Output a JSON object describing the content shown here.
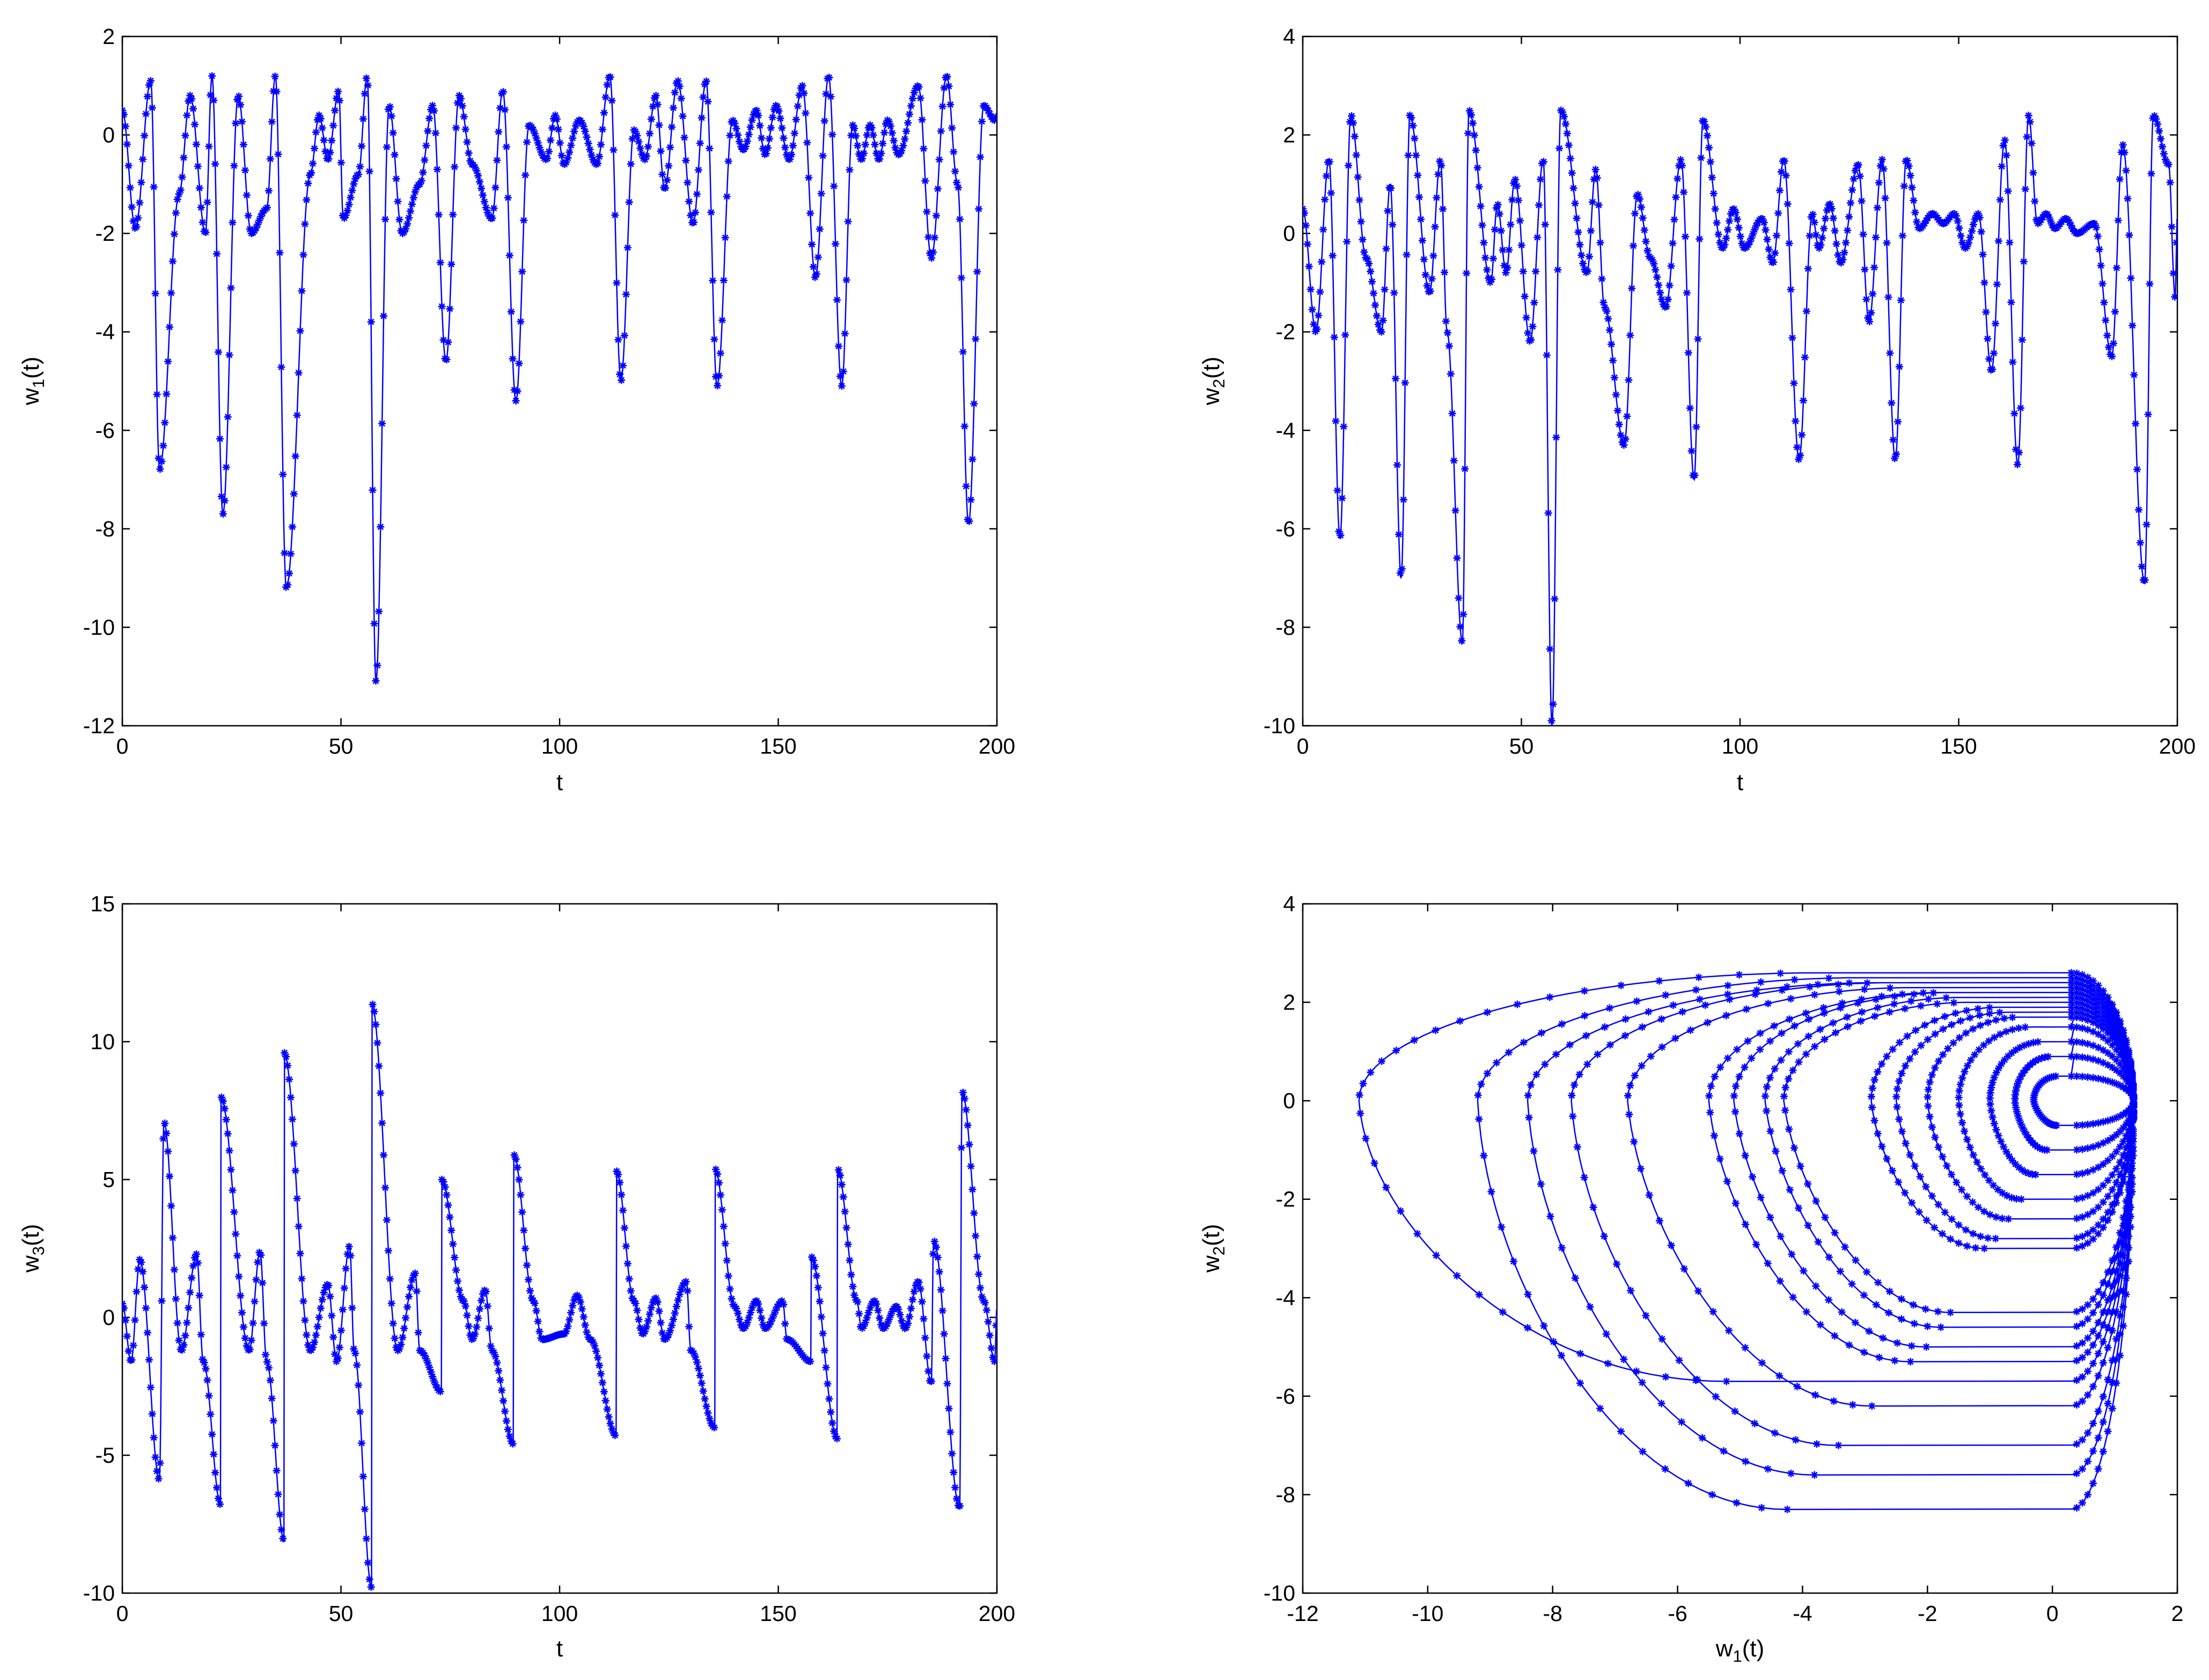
{
  "chart_data": [
    {
      "id": "w1",
      "type": "line",
      "marker": "asterisk",
      "xlabel": "t",
      "ylabel": {
        "main": "w",
        "sub": "1",
        "suffix": "(t)"
      },
      "xlim": [
        0,
        200
      ],
      "ylim": [
        -12,
        2
      ],
      "xticks": [
        0,
        50,
        100,
        150,
        200
      ],
      "yticks": [
        -12,
        -10,
        -8,
        -6,
        -4,
        -2,
        0,
        2
      ],
      "dips": [
        [
          3,
          -1.9
        ],
        [
          8.5,
          -6.8
        ],
        [
          13,
          -1.2
        ],
        [
          19,
          -2.0
        ],
        [
          23,
          -7.7
        ],
        [
          29.5,
          -2.0
        ],
        [
          33,
          -1.5
        ],
        [
          37.5,
          -9.2
        ],
        [
          43,
          -0.8
        ],
        [
          47,
          -0.5
        ],
        [
          50.5,
          -1.7
        ],
        [
          54,
          -0.8
        ],
        [
          58,
          -11.1
        ],
        [
          64,
          -2.0
        ],
        [
          68,
          -1.0
        ],
        [
          74,
          -4.6
        ],
        [
          80,
          -0.6
        ],
        [
          84.5,
          -1.7
        ],
        [
          90,
          -5.4
        ],
        [
          97,
          -0.5
        ],
        [
          101,
          -0.6
        ],
        [
          108.5,
          -0.6
        ],
        [
          114,
          -5.0
        ],
        [
          119.5,
          -0.5
        ],
        [
          124,
          -1.1
        ],
        [
          130.5,
          -1.8
        ],
        [
          136,
          -5.1
        ],
        [
          142,
          -0.3
        ],
        [
          147,
          -0.4
        ],
        [
          152.5,
          -0.5
        ],
        [
          158.5,
          -2.9
        ],
        [
          164.5,
          -5.1
        ],
        [
          169,
          -0.5
        ],
        [
          173,
          -0.5
        ],
        [
          177.5,
          -0.4
        ],
        [
          185,
          -2.5
        ],
        [
          191,
          -1.0
        ],
        [
          193.5,
          -7.9
        ],
        [
          199.5,
          0.3
        ]
      ],
      "peaks": [
        [
          6.5,
          1.1
        ],
        [
          15.5,
          0.8
        ],
        [
          20.5,
          1.2
        ],
        [
          26.5,
          0.8
        ],
        [
          35,
          1.2
        ],
        [
          45,
          0.4
        ],
        [
          49.5,
          0.9
        ],
        [
          56,
          1.2
        ],
        [
          61,
          0.6
        ],
        [
          71,
          0.6
        ],
        [
          77,
          0.8
        ],
        [
          87,
          0.9
        ],
        [
          93,
          0.2
        ],
        [
          99,
          0.4
        ],
        [
          104.5,
          0.3
        ],
        [
          111.5,
          1.2
        ],
        [
          117,
          0.1
        ],
        [
          122,
          0.8
        ],
        [
          127,
          1.1
        ],
        [
          133.5,
          1.1
        ],
        [
          139.5,
          0.3
        ],
        [
          145,
          0.5
        ],
        [
          149.5,
          0.6
        ],
        [
          155.5,
          1.0
        ],
        [
          161.5,
          1.2
        ],
        [
          167,
          0.2
        ],
        [
          171,
          0.2
        ],
        [
          175,
          0.3
        ],
        [
          182,
          1.0
        ],
        [
          188.5,
          1.2
        ],
        [
          197,
          0.6
        ]
      ]
    },
    {
      "id": "w2",
      "type": "line",
      "marker": "asterisk",
      "xlabel": "t",
      "ylabel": {
        "main": "w",
        "sub": "2",
        "suffix": "(t)"
      },
      "xlim": [
        0,
        200
      ],
      "ylim": [
        -10,
        4
      ],
      "xticks": [
        0,
        50,
        100,
        150,
        200
      ],
      "yticks": [
        -10,
        -8,
        -6,
        -4,
        -2,
        0,
        2,
        4
      ],
      "dips": [
        [
          3,
          -2.0
        ],
        [
          8.5,
          -6.2
        ],
        [
          14.5,
          -0.5
        ],
        [
          18,
          -2.0
        ],
        [
          22.5,
          -7.0
        ],
        [
          29,
          -1.2
        ],
        [
          33,
          -2.0
        ],
        [
          36.5,
          -8.3
        ],
        [
          43,
          -1.0
        ],
        [
          46.5,
          -0.8
        ],
        [
          52,
          -2.2
        ],
        [
          57,
          -10.0
        ],
        [
          65,
          -0.8
        ],
        [
          69,
          -1.5
        ],
        [
          73.5,
          -4.3
        ],
        [
          79.5,
          -0.5
        ],
        [
          83,
          -1.5
        ],
        [
          89.5,
          -5.0
        ],
        [
          96,
          -0.3
        ],
        [
          101,
          -0.3
        ],
        [
          107.5,
          -0.6
        ],
        [
          113.5,
          -4.6
        ],
        [
          118,
          -0.3
        ],
        [
          123,
          -0.6
        ],
        [
          129.5,
          -1.8
        ],
        [
          135.5,
          -4.6
        ],
        [
          141,
          0.1
        ],
        [
          146.5,
          0.2
        ],
        [
          151.5,
          -0.3
        ],
        [
          157.5,
          -2.8
        ],
        [
          163.5,
          -4.7
        ],
        [
          168,
          0.2
        ],
        [
          172,
          0.1
        ],
        [
          177,
          0.0
        ],
        [
          185,
          -2.5
        ],
        [
          192.5,
          -7.1
        ],
        [
          199.5,
          -1.3
        ]
      ],
      "peaks": [
        [
          6,
          1.5
        ],
        [
          11,
          2.4
        ],
        [
          20,
          1.0
        ],
        [
          24.5,
          2.4
        ],
        [
          31.5,
          1.5
        ],
        [
          38,
          2.5
        ],
        [
          44.5,
          0.6
        ],
        [
          48.5,
          1.1
        ],
        [
          55,
          1.5
        ],
        [
          59,
          2.5
        ],
        [
          67,
          1.3
        ],
        [
          76.5,
          0.8
        ],
        [
          86.5,
          1.5
        ],
        [
          91.5,
          2.3
        ],
        [
          98.5,
          0.5
        ],
        [
          105,
          0.3
        ],
        [
          110,
          1.5
        ],
        [
          116.5,
          0.4
        ],
        [
          120.5,
          0.6
        ],
        [
          127,
          1.4
        ],
        [
          132.5,
          1.5
        ],
        [
          138,
          1.5
        ],
        [
          144,
          0.4
        ],
        [
          149,
          0.4
        ],
        [
          154.5,
          0.4
        ],
        [
          160.5,
          1.9
        ],
        [
          166,
          2.4
        ],
        [
          170,
          0.4
        ],
        [
          174.5,
          0.3
        ],
        [
          181,
          0.2
        ],
        [
          187.5,
          1.8
        ],
        [
          194.5,
          2.4
        ],
        [
          198,
          1.4
        ]
      ]
    },
    {
      "id": "w3",
      "type": "line",
      "marker": "asterisk",
      "xlabel": "t",
      "ylabel": {
        "main": "w",
        "sub": "3",
        "suffix": "(t)"
      },
      "xlim": [
        0,
        200
      ],
      "ylim": [
        -10,
        15
      ],
      "xticks": [
        0,
        50,
        100,
        150,
        200
      ],
      "yticks": [
        -10,
        -5,
        0,
        5,
        10,
        15
      ],
      "dips": [
        [
          2,
          -1.6
        ],
        [
          8.5,
          -5.9
        ],
        [
          13.5,
          -1.2
        ],
        [
          18.5,
          -1.6
        ],
        [
          22.5,
          -6.8
        ],
        [
          29,
          -1.2
        ],
        [
          33,
          -1.6
        ],
        [
          37,
          -8.1
        ],
        [
          43,
          -1.2
        ],
        [
          49,
          -1.6
        ],
        [
          53,
          -1.2
        ],
        [
          57,
          -9.8
        ],
        [
          63,
          -1.2
        ],
        [
          68,
          -1.2
        ],
        [
          73,
          -2.7
        ],
        [
          80,
          -0.8
        ],
        [
          84.5,
          -1.2
        ],
        [
          89.5,
          -4.6
        ],
        [
          96,
          -0.8
        ],
        [
          101,
          -0.6
        ],
        [
          107,
          -0.8
        ],
        [
          113,
          -4.3
        ],
        [
          119,
          -0.6
        ],
        [
          124,
          -0.8
        ],
        [
          130,
          -1.2
        ],
        [
          135.5,
          -4.0
        ],
        [
          142,
          -0.4
        ],
        [
          147,
          -0.4
        ],
        [
          152,
          -0.8
        ],
        [
          157.5,
          -1.6
        ],
        [
          163.5,
          -4.4
        ],
        [
          169,
          -0.4
        ],
        [
          174,
          -0.4
        ],
        [
          179,
          -0.4
        ],
        [
          185,
          -2.4
        ],
        [
          191.5,
          -6.9
        ],
        [
          199.5,
          -1.6
        ]
      ],
      "peaks": [
        [
          4,
          2.1
        ],
        [
          9.5,
          7.1
        ],
        [
          17,
          2.3
        ],
        [
          22.5,
          8.0
        ],
        [
          31.5,
          2.4
        ],
        [
          37,
          9.6
        ],
        [
          47,
          1.2
        ],
        [
          52,
          2.6
        ],
        [
          57,
          11.4
        ],
        [
          67,
          1.6
        ],
        [
          73,
          5.0
        ],
        [
          78,
          0.6
        ],
        [
          83,
          1.0
        ],
        [
          89.5,
          5.9
        ],
        [
          94,
          0.6
        ],
        [
          104,
          0.8
        ],
        [
          113,
          5.3
        ],
        [
          117,
          0.6
        ],
        [
          122,
          0.7
        ],
        [
          129,
          1.3
        ],
        [
          135.5,
          5.4
        ],
        [
          140,
          0.4
        ],
        [
          145,
          0.6
        ],
        [
          151,
          0.6
        ],
        [
          157.5,
          2.2
        ],
        [
          163.5,
          5.4
        ],
        [
          168,
          0.6
        ],
        [
          172,
          0.6
        ],
        [
          177,
          0.4
        ],
        [
          182,
          1.3
        ],
        [
          185.5,
          2.8
        ],
        [
          192,
          8.2
        ],
        [
          197,
          0.6
        ]
      ]
    },
    {
      "id": "phase",
      "type": "line",
      "marker": "asterisk",
      "xlabel": {
        "main": "w",
        "sub": "1",
        "suffix": "(t)"
      },
      "ylabel": {
        "main": "w",
        "sub": "2",
        "suffix": "(t)"
      },
      "xlim": [
        -12,
        2
      ],
      "ylim": [
        -10,
        4
      ],
      "xticks": [
        -12,
        -10,
        -8,
        -6,
        -4,
        -2,
        0,
        2
      ],
      "yticks": [
        -10,
        -8,
        -6,
        -4,
        -2,
        0,
        2,
        4
      ],
      "loops": [
        [
          -11.1,
          -9.8,
          2.6,
          -5.7
        ],
        [
          -9.2,
          -7.9,
          2.5,
          -8.3
        ],
        [
          -8.4,
          -7.0,
          2.4,
          -7.6
        ],
        [
          -7.7,
          -6.2,
          2.4,
          -7.0
        ],
        [
          -6.8,
          -5.0,
          2.3,
          -6.2
        ],
        [
          -5.5,
          -3.9,
          2.2,
          -5.3
        ],
        [
          -5.1,
          -3.3,
          2.2,
          -5.0
        ],
        [
          -4.6,
          -2.9,
          2.1,
          -4.6
        ],
        [
          -4.3,
          -2.6,
          2.0,
          -4.3
        ],
        [
          -2.9,
          -1.9,
          1.9,
          -3.0
        ],
        [
          -2.5,
          -1.6,
          1.8,
          -2.8
        ],
        [
          -2.0,
          -1.3,
          1.7,
          -2.4
        ],
        [
          -1.5,
          -1.0,
          1.5,
          -2.0
        ],
        [
          -1.0,
          -0.6,
          1.2,
          -1.5
        ],
        [
          -0.6,
          -0.3,
          0.9,
          -1.0
        ],
        [
          -0.3,
          0.0,
          0.5,
          -0.5
        ]
      ]
    }
  ]
}
